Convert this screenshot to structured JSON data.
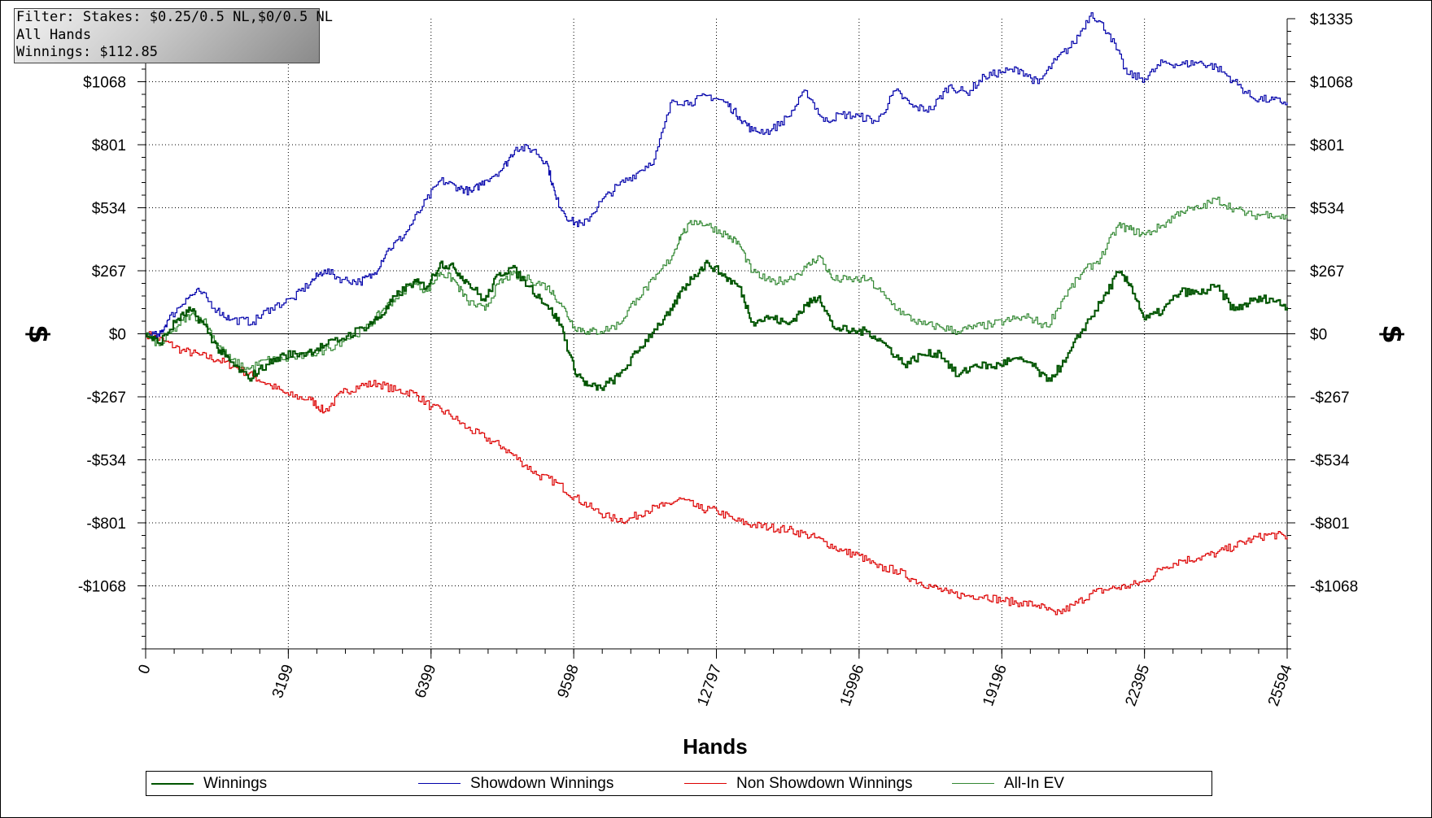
{
  "filter_box": {
    "line1": "Filter: Stakes: $0.25/0.5 NL,$0/0.5 NL",
    "line2": "All Hands",
    "line3": "Winnings: $112.85"
  },
  "chart_data": {
    "type": "line",
    "xlabel": "Hands",
    "ylabel": "$",
    "xlim": [
      0,
      25594
    ],
    "ylim": [
      -1335,
      1335
    ],
    "x_ticks": [
      "0",
      "3199",
      "6399",
      "9598",
      "12797",
      "15996",
      "19196",
      "22395",
      "25594"
    ],
    "y_ticks": [
      {
        "value": 1335,
        "left": "",
        "right": "$1335"
      },
      {
        "value": 1068,
        "left": "$1068",
        "right": "$1068"
      },
      {
        "value": 801,
        "left": "$801",
        "right": "$801"
      },
      {
        "value": 534,
        "left": "$534",
        "right": "$534"
      },
      {
        "value": 267,
        "left": "$267",
        "right": "$267"
      },
      {
        "value": 0,
        "left": "$0",
        "right": "$0"
      },
      {
        "value": -267,
        "left": "-$267",
        "right": "-$267"
      },
      {
        "value": -534,
        "left": "-$534",
        "right": "-$534"
      },
      {
        "value": -801,
        "left": "-$801",
        "right": "-$801"
      },
      {
        "value": -1068,
        "left": "-$1068",
        "right": "-$1068"
      }
    ],
    "grid": true,
    "legend_position": "bottom",
    "series": [
      {
        "name": "Winnings",
        "color": "#005500",
        "width": 2,
        "points": [
          [
            0,
            0
          ],
          [
            300,
            -40
          ],
          [
            700,
            60
          ],
          [
            1000,
            100
          ],
          [
            1300,
            40
          ],
          [
            1600,
            -60
          ],
          [
            1900,
            -120
          ],
          [
            2300,
            -190
          ],
          [
            2700,
            -130
          ],
          [
            3100,
            -90
          ],
          [
            3600,
            -80
          ],
          [
            4000,
            -50
          ],
          [
            4500,
            -10
          ],
          [
            5000,
            40
          ],
          [
            5300,
            80
          ],
          [
            5600,
            160
          ],
          [
            6000,
            220
          ],
          [
            6300,
            200
          ],
          [
            6600,
            300
          ],
          [
            6900,
            280
          ],
          [
            7200,
            220
          ],
          [
            7600,
            140
          ],
          [
            7900,
            250
          ],
          [
            8200,
            280
          ],
          [
            8600,
            200
          ],
          [
            9000,
            120
          ],
          [
            9300,
            40
          ],
          [
            9600,
            -150
          ],
          [
            9900,
            -220
          ],
          [
            10200,
            -230
          ],
          [
            10600,
            -180
          ],
          [
            11000,
            -80
          ],
          [
            11400,
            20
          ],
          [
            11800,
            100
          ],
          [
            12000,
            180
          ],
          [
            12300,
            250
          ],
          [
            12600,
            300
          ],
          [
            13000,
            240
          ],
          [
            13300,
            200
          ],
          [
            13600,
            50
          ],
          [
            14000,
            70
          ],
          [
            14400,
            40
          ],
          [
            14800,
            120
          ],
          [
            15100,
            160
          ],
          [
            15400,
            30
          ],
          [
            15800,
            10
          ],
          [
            16200,
            10
          ],
          [
            16600,
            -50
          ],
          [
            17000,
            -130
          ],
          [
            17400,
            -90
          ],
          [
            17800,
            -80
          ],
          [
            18200,
            -180
          ],
          [
            18600,
            -130
          ],
          [
            19000,
            -140
          ],
          [
            19400,
            -110
          ],
          [
            19800,
            -120
          ],
          [
            20200,
            -200
          ],
          [
            20600,
            -120
          ],
          [
            21000,
            20
          ],
          [
            21400,
            130
          ],
          [
            21800,
            260
          ],
          [
            22100,
            200
          ],
          [
            22395,
            60
          ],
          [
            22800,
            100
          ],
          [
            23200,
            180
          ],
          [
            23600,
            170
          ],
          [
            24000,
            200
          ],
          [
            24400,
            100
          ],
          [
            24800,
            140
          ],
          [
            25200,
            150
          ],
          [
            25594,
            113
          ]
        ]
      },
      {
        "name": "Showdown Winnings",
        "color": "#0000aa",
        "width": 1.2,
        "points": [
          [
            0,
            0
          ],
          [
            300,
            -10
          ],
          [
            500,
            60
          ],
          [
            900,
            150
          ],
          [
            1200,
            180
          ],
          [
            1600,
            100
          ],
          [
            1900,
            60
          ],
          [
            2400,
            50
          ],
          [
            2800,
            110
          ],
          [
            3300,
            150
          ],
          [
            3700,
            220
          ],
          [
            4000,
            270
          ],
          [
            4400,
            230
          ],
          [
            4800,
            220
          ],
          [
            5100,
            250
          ],
          [
            5400,
            350
          ],
          [
            5800,
            420
          ],
          [
            6200,
            540
          ],
          [
            6600,
            650
          ],
          [
            7000,
            620
          ],
          [
            7300,
            600
          ],
          [
            7600,
            650
          ],
          [
            8000,
            700
          ],
          [
            8300,
            790
          ],
          [
            8700,
            780
          ],
          [
            9000,
            720
          ],
          [
            9200,
            570
          ],
          [
            9500,
            480
          ],
          [
            9800,
            460
          ],
          [
            10200,
            560
          ],
          [
            10600,
            630
          ],
          [
            11000,
            680
          ],
          [
            11400,
            740
          ],
          [
            11800,
            990
          ],
          [
            12200,
            980
          ],
          [
            12600,
            1010
          ],
          [
            13000,
            980
          ],
          [
            13300,
            920
          ],
          [
            13600,
            860
          ],
          [
            14000,
            860
          ],
          [
            14400,
            920
          ],
          [
            14800,
            1030
          ],
          [
            15200,
            900
          ],
          [
            15600,
            930
          ],
          [
            16000,
            920
          ],
          [
            16400,
            900
          ],
          [
            16800,
            1030
          ],
          [
            17200,
            960
          ],
          [
            17600,
            950
          ],
          [
            18000,
            1050
          ],
          [
            18400,
            1020
          ],
          [
            18800,
            1090
          ],
          [
            19200,
            1110
          ],
          [
            19600,
            1120
          ],
          [
            20000,
            1060
          ],
          [
            20400,
            1160
          ],
          [
            20800,
            1230
          ],
          [
            21200,
            1360
          ],
          [
            21600,
            1270
          ],
          [
            22000,
            1100
          ],
          [
            22395,
            1080
          ],
          [
            22800,
            1150
          ],
          [
            23200,
            1140
          ],
          [
            23600,
            1150
          ],
          [
            24000,
            1130
          ],
          [
            24400,
            1070
          ],
          [
            24800,
            1000
          ],
          [
            25200,
            990
          ],
          [
            25594,
            980
          ]
        ]
      },
      {
        "name": "Non Showdown Winnings",
        "color": "#dd0000",
        "width": 1.2,
        "points": [
          [
            0,
            0
          ],
          [
            400,
            -30
          ],
          [
            800,
            -70
          ],
          [
            1200,
            -90
          ],
          [
            1600,
            -110
          ],
          [
            2000,
            -140
          ],
          [
            2400,
            -180
          ],
          [
            2800,
            -220
          ],
          [
            3200,
            -260
          ],
          [
            3700,
            -280
          ],
          [
            4000,
            -330
          ],
          [
            4400,
            -250
          ],
          [
            4800,
            -220
          ],
          [
            5200,
            -210
          ],
          [
            5600,
            -240
          ],
          [
            6000,
            -250
          ],
          [
            6400,
            -310
          ],
          [
            6800,
            -340
          ],
          [
            7200,
            -400
          ],
          [
            7600,
            -440
          ],
          [
            8000,
            -480
          ],
          [
            8400,
            -540
          ],
          [
            8800,
            -600
          ],
          [
            9200,
            -630
          ],
          [
            9600,
            -690
          ],
          [
            10000,
            -740
          ],
          [
            10400,
            -780
          ],
          [
            10800,
            -790
          ],
          [
            11200,
            -750
          ],
          [
            11600,
            -730
          ],
          [
            12000,
            -700
          ],
          [
            12400,
            -740
          ],
          [
            12800,
            -750
          ],
          [
            13200,
            -790
          ],
          [
            13600,
            -810
          ],
          [
            14000,
            -820
          ],
          [
            14400,
            -830
          ],
          [
            14800,
            -850
          ],
          [
            15200,
            -880
          ],
          [
            15600,
            -920
          ],
          [
            16000,
            -940
          ],
          [
            16400,
            -990
          ],
          [
            16800,
            -1000
          ],
          [
            17200,
            -1040
          ],
          [
            17600,
            -1070
          ],
          [
            18000,
            -1100
          ],
          [
            18400,
            -1110
          ],
          [
            18800,
            -1110
          ],
          [
            19200,
            -1130
          ],
          [
            19600,
            -1140
          ],
          [
            20000,
            -1150
          ],
          [
            20400,
            -1190
          ],
          [
            20800,
            -1150
          ],
          [
            21200,
            -1100
          ],
          [
            21600,
            -1080
          ],
          [
            22000,
            -1070
          ],
          [
            22395,
            -1050
          ],
          [
            22800,
            -990
          ],
          [
            23200,
            -960
          ],
          [
            23600,
            -950
          ],
          [
            24000,
            -930
          ],
          [
            24400,
            -900
          ],
          [
            24800,
            -870
          ],
          [
            25200,
            -850
          ],
          [
            25594,
            -860
          ]
        ]
      },
      {
        "name": "All-In EV",
        "color": "#338833",
        "width": 1.2,
        "points": [
          [
            0,
            0
          ],
          [
            300,
            -50
          ],
          [
            700,
            30
          ],
          [
            1000,
            80
          ],
          [
            1300,
            60
          ],
          [
            1600,
            -40
          ],
          [
            1900,
            -110
          ],
          [
            2300,
            -150
          ],
          [
            2700,
            -110
          ],
          [
            3100,
            -110
          ],
          [
            3600,
            -90
          ],
          [
            4000,
            -70
          ],
          [
            4500,
            -20
          ],
          [
            5000,
            30
          ],
          [
            5300,
            100
          ],
          [
            5600,
            150
          ],
          [
            6000,
            220
          ],
          [
            6300,
            180
          ],
          [
            6600,
            260
          ],
          [
            6900,
            230
          ],
          [
            7200,
            140
          ],
          [
            7600,
            100
          ],
          [
            7900,
            210
          ],
          [
            8200,
            250
          ],
          [
            8600,
            230
          ],
          [
            9000,
            200
          ],
          [
            9300,
            130
          ],
          [
            9600,
            30
          ],
          [
            9900,
            10
          ],
          [
            10200,
            10
          ],
          [
            10600,
            40
          ],
          [
            11000,
            150
          ],
          [
            11400,
            230
          ],
          [
            11800,
            330
          ],
          [
            12000,
            420
          ],
          [
            12300,
            480
          ],
          [
            12600,
            460
          ],
          [
            13000,
            420
          ],
          [
            13300,
            380
          ],
          [
            13600,
            260
          ],
          [
            14000,
            220
          ],
          [
            14400,
            230
          ],
          [
            14800,
            280
          ],
          [
            15100,
            330
          ],
          [
            15400,
            230
          ],
          [
            15800,
            230
          ],
          [
            16200,
            230
          ],
          [
            16600,
            150
          ],
          [
            17000,
            80
          ],
          [
            17400,
            40
          ],
          [
            17800,
            30
          ],
          [
            18200,
            10
          ],
          [
            18600,
            30
          ],
          [
            19000,
            40
          ],
          [
            19400,
            60
          ],
          [
            19800,
            70
          ],
          [
            20200,
            30
          ],
          [
            20600,
            160
          ],
          [
            21000,
            260
          ],
          [
            21400,
            320
          ],
          [
            21800,
            460
          ],
          [
            22100,
            440
          ],
          [
            22395,
            420
          ],
          [
            22800,
            460
          ],
          [
            23200,
            520
          ],
          [
            23600,
            530
          ],
          [
            24000,
            570
          ],
          [
            24400,
            530
          ],
          [
            24800,
            500
          ],
          [
            25200,
            510
          ],
          [
            25594,
            490
          ]
        ]
      }
    ]
  }
}
